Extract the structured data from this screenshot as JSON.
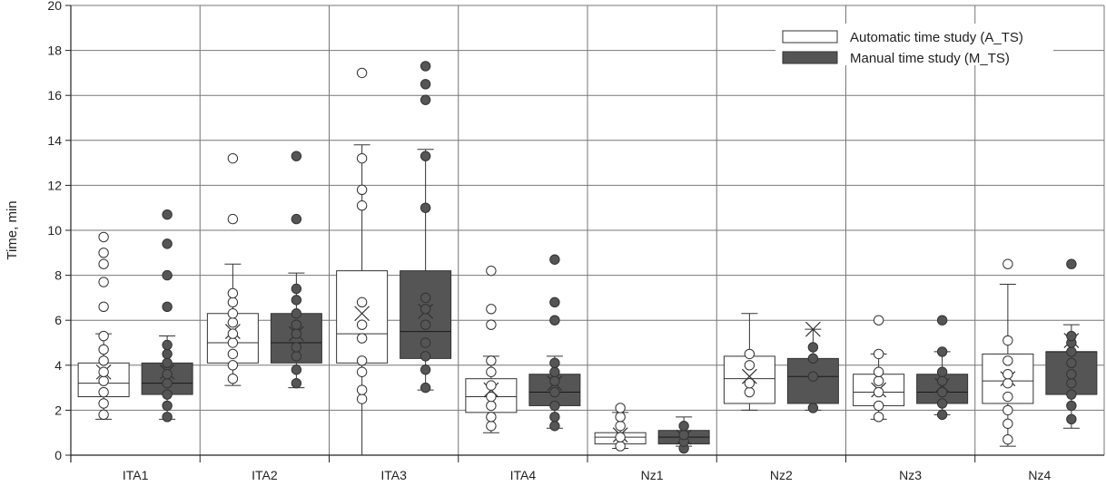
{
  "chart_data": {
    "type": "box",
    "ylabel": "Time, min",
    "ylim": [
      0,
      20
    ],
    "yticks": [
      0,
      2,
      4,
      6,
      8,
      10,
      12,
      14,
      16,
      18,
      20
    ],
    "grid": true,
    "legend_position": "top-right",
    "categories": [
      "ITA1",
      "ITA2",
      "ITA3",
      "ITA4",
      "Nz1",
      "Nz2",
      "Nz3",
      "Nz4"
    ],
    "series": [
      {
        "name": "Automatic time study (A_TS)",
        "color": "#ffffff",
        "boxes": [
          {
            "min": 1.6,
            "q1": 2.6,
            "median": 3.2,
            "q3": 4.1,
            "max": 5.4,
            "mean": 3.7,
            "points": [
              1.8,
              2.3,
              2.8,
              3.3,
              3.7,
              4.2,
              4.7,
              5.3,
              6.6,
              7.7,
              8.5,
              9.0,
              9.7
            ]
          },
          {
            "min": 3.1,
            "q1": 4.1,
            "median": 5.0,
            "q3": 6.3,
            "max": 8.5,
            "mean": 5.5,
            "points": [
              3.4,
              4.0,
              4.5,
              5.0,
              5.4,
              5.9,
              6.3,
              6.8,
              7.2,
              10.5,
              13.2
            ]
          },
          {
            "min": 0.0,
            "q1": 4.1,
            "median": 5.4,
            "q3": 8.2,
            "max": 13.8,
            "mean": 6.3,
            "points": [
              2.5,
              2.9,
              3.7,
              4.2,
              5.2,
              5.8,
              6.8,
              11.1,
              11.8,
              13.2,
              17.0
            ]
          },
          {
            "min": 1.0,
            "q1": 1.9,
            "median": 2.6,
            "q3": 3.4,
            "max": 4.4,
            "mean": 2.9,
            "points": [
              1.3,
              1.7,
              2.2,
              2.6,
              3.1,
              3.7,
              4.2,
              5.8,
              6.5,
              8.2
            ]
          },
          {
            "min": 0.3,
            "q1": 0.5,
            "median": 0.8,
            "q3": 1.0,
            "max": 1.9,
            "mean": 0.9,
            "points": [
              0.4,
              0.8,
              1.3,
              1.7,
              2.1
            ]
          },
          {
            "min": 2.0,
            "q1": 2.3,
            "median": 3.4,
            "q3": 4.4,
            "max": 6.3,
            "mean": 3.5,
            "points": [
              2.8,
              3.2,
              4.0,
              4.5
            ]
          },
          {
            "min": 1.6,
            "q1": 2.2,
            "median": 2.8,
            "q3": 3.6,
            "max": 4.5,
            "mean": 2.9,
            "points": [
              1.7,
              2.2,
              2.8,
              3.3,
              3.7,
              4.5,
              6.0
            ]
          },
          {
            "min": 0.4,
            "q1": 2.3,
            "median": 3.3,
            "q3": 4.5,
            "max": 7.6,
            "mean": 3.4,
            "points": [
              0.7,
              1.4,
              2.0,
              2.6,
              3.2,
              3.6,
              4.2,
              5.1,
              8.5
            ]
          }
        ]
      },
      {
        "name": "Manual time study (M_TS)",
        "color": "#555555",
        "boxes": [
          {
            "min": 1.6,
            "q1": 2.7,
            "median": 3.2,
            "q3": 4.1,
            "max": 5.3,
            "mean": 3.7,
            "points": [
              1.7,
              2.2,
              2.7,
              3.2,
              3.6,
              4.1,
              4.5,
              4.9,
              6.6,
              8.0,
              9.4,
              10.7
            ]
          },
          {
            "min": 3.0,
            "q1": 4.1,
            "median": 5.0,
            "q3": 6.3,
            "max": 8.1,
            "mean": 5.4,
            "points": [
              3.2,
              3.8,
              4.4,
              4.8,
              5.4,
              5.8,
              6.3,
              6.9,
              7.4,
              10.5,
              13.3
            ]
          },
          {
            "min": 2.9,
            "q1": 4.3,
            "median": 5.5,
            "q3": 8.2,
            "max": 13.6,
            "mean": 6.4,
            "points": [
              3.0,
              3.8,
              4.4,
              5.0,
              5.8,
              6.5,
              7.0,
              11.0,
              13.3,
              15.8,
              16.5,
              17.3
            ]
          },
          {
            "min": 1.2,
            "q1": 2.2,
            "median": 2.8,
            "q3": 3.6,
            "max": 4.4,
            "mean": 3.2,
            "points": [
              1.3,
              1.7,
              2.2,
              2.8,
              3.3,
              3.7,
              4.1,
              6.0,
              6.8,
              8.7
            ]
          },
          {
            "min": 0.4,
            "q1": 0.5,
            "median": 0.8,
            "q3": 1.1,
            "max": 1.7,
            "mean": 0.8,
            "points": [
              0.3,
              0.6,
              0.9,
              1.3
            ]
          },
          {
            "min": 2.0,
            "q1": 2.3,
            "median": 3.5,
            "q3": 4.3,
            "max": 5.6,
            "mean": 5.6,
            "points": [
              2.1,
              3.5,
              4.3,
              4.8
            ]
          },
          {
            "min": 1.8,
            "q1": 2.3,
            "median": 2.8,
            "q3": 3.6,
            "max": 4.6,
            "mean": 3.1,
            "points": [
              1.8,
              2.3,
              2.8,
              3.3,
              3.7,
              4.6,
              6.0
            ]
          },
          {
            "min": 1.2,
            "q1": 2.7,
            "median": 4.6,
            "q3": 4.6,
            "max": 5.8,
            "mean": 5.1,
            "points": [
              1.6,
              2.2,
              2.7,
              3.2,
              3.6,
              4.1,
              4.6,
              5.0,
              5.3,
              8.5
            ]
          }
        ]
      }
    ]
  }
}
